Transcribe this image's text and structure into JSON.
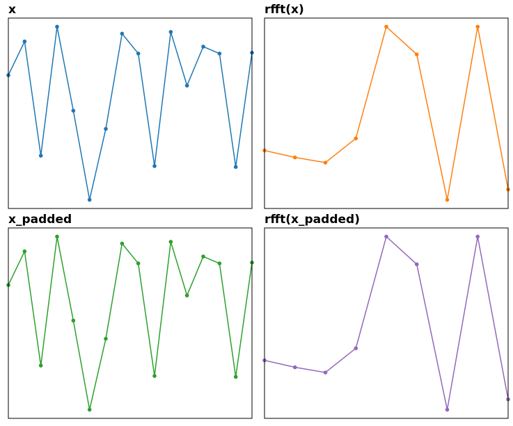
{
  "chart_data": [
    {
      "type": "line",
      "title": "x",
      "color": "#1f77b4",
      "x": [
        0,
        1,
        2,
        3,
        4,
        5,
        6,
        7,
        8,
        9,
        10,
        11,
        12,
        13,
        14,
        15
      ],
      "values": [
        0.44,
        0.83,
        -0.49,
        1.0,
        0.03,
        -1.0,
        -0.18,
        0.92,
        0.69,
        -0.61,
        0.94,
        0.32,
        0.77,
        0.69,
        -0.62,
        0.7
      ],
      "xlim": [
        0,
        15
      ],
      "ylim": [
        -1.1,
        1.1
      ]
    },
    {
      "type": "line",
      "title": "rfft(x)",
      "color": "#ff7f0e",
      "x": [
        0,
        1,
        2,
        3,
        4,
        5,
        6,
        7,
        8
      ],
      "values": [
        -0.43,
        -0.51,
        -0.57,
        -0.29,
        1.0,
        0.68,
        -1.0,
        1.0,
        -0.88
      ],
      "xlim": [
        0,
        8
      ],
      "ylim": [
        -1.1,
        1.1
      ]
    },
    {
      "type": "line",
      "title": "x_padded",
      "color": "#2ca02c",
      "x": [
        0,
        1,
        2,
        3,
        4,
        5,
        6,
        7,
        8,
        9,
        10,
        11,
        12,
        13,
        14,
        15
      ],
      "values": [
        0.44,
        0.83,
        -0.49,
        1.0,
        0.03,
        -1.0,
        -0.18,
        0.92,
        0.69,
        -0.61,
        0.94,
        0.32,
        0.77,
        0.69,
        -0.62,
        0.7
      ],
      "xlim": [
        0,
        15
      ],
      "ylim": [
        -1.1,
        1.1
      ]
    },
    {
      "type": "line",
      "title": "rfft(x_padded)",
      "color": "#9467bd",
      "x": [
        0,
        1,
        2,
        3,
        4,
        5,
        6,
        7,
        8
      ],
      "values": [
        -0.43,
        -0.51,
        -0.57,
        -0.29,
        1.0,
        0.68,
        -1.0,
        1.0,
        -0.88
      ],
      "xlim": [
        0,
        8
      ],
      "ylim": [
        -1.1,
        1.1
      ]
    }
  ]
}
